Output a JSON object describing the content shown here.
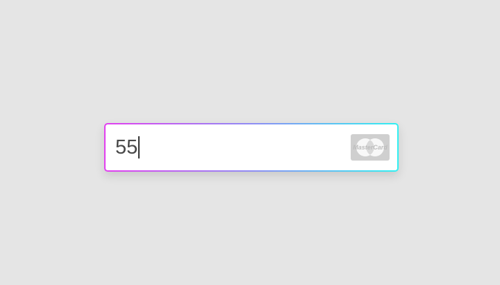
{
  "card_input": {
    "value": "55",
    "brand_icon": "mastercard-icon",
    "brand_text": "MasterCard"
  },
  "colors": {
    "background": "#e5e5e5",
    "border_gradient_start": "#e23df0",
    "border_gradient_end": "#2ff0f2",
    "brand_badge": "#cfcfcf"
  }
}
